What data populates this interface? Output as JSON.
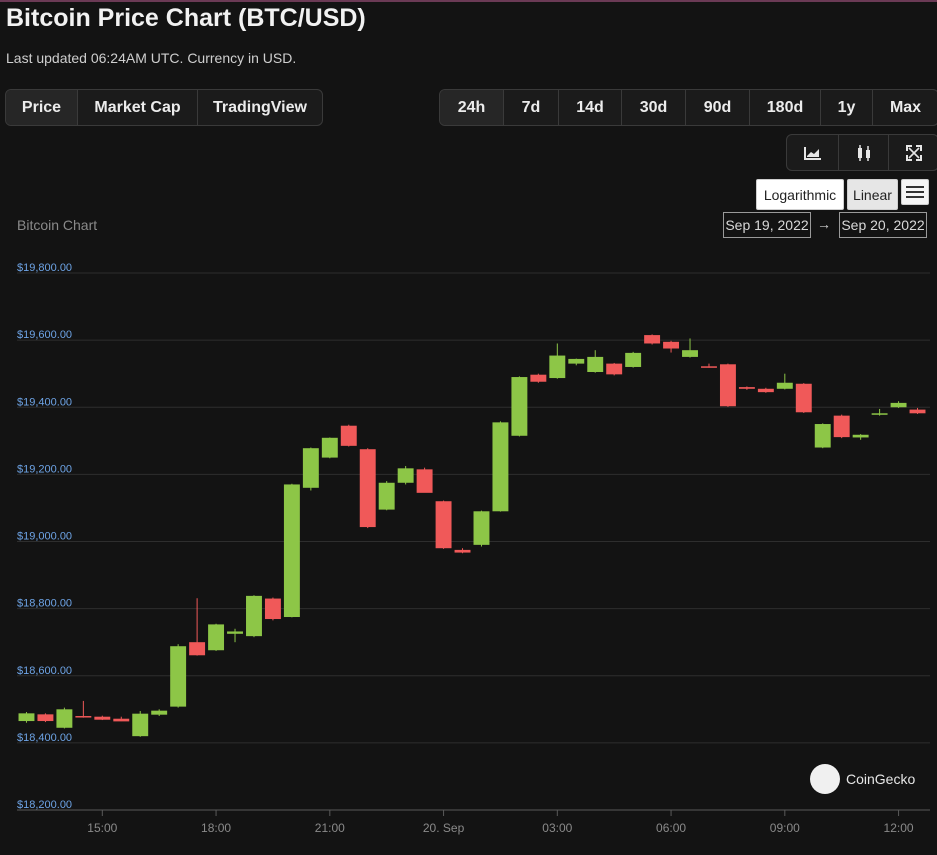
{
  "header": {
    "title": "Bitcoin Price Chart (BTC/USD)",
    "subtitle": "Last updated 06:24AM UTC. Currency in USD."
  },
  "view_tabs": [
    {
      "label": "Price",
      "active": true
    },
    {
      "label": "Market Cap",
      "active": false
    },
    {
      "label": "TradingView",
      "active": false
    }
  ],
  "range_tabs": [
    {
      "label": "24h",
      "active": true
    },
    {
      "label": "7d",
      "active": false
    },
    {
      "label": "14d",
      "active": false
    },
    {
      "label": "30d",
      "active": false
    },
    {
      "label": "90d",
      "active": false
    },
    {
      "label": "180d",
      "active": false
    },
    {
      "label": "1y",
      "active": false
    },
    {
      "label": "Max",
      "active": false
    }
  ],
  "tools": [
    {
      "name": "line-chart-icon"
    },
    {
      "name": "candlestick-icon"
    },
    {
      "name": "fullscreen-icon"
    }
  ],
  "scale": {
    "log_label": "Logarithmic",
    "linear_label": "Linear"
  },
  "date_range": {
    "from": "Sep 19, 2022",
    "arrow": "→",
    "to": "Sep 20, 2022"
  },
  "branding": {
    "text": "CoinGecko"
  },
  "colors": {
    "up": "#8dc647",
    "down": "#f05959",
    "background": "#131313",
    "grid": "#2e2e2e",
    "tick": "#6ea4e6"
  },
  "chart_data": {
    "type": "candlestick",
    "title": "Bitcoin Chart",
    "ylim": [
      18200,
      19800
    ],
    "yticks": [
      "$19,800.00",
      "$19,600.00",
      "$19,400.00",
      "$19,200.00",
      "$19,000.00",
      "$18,800.00",
      "$18,600.00",
      "$18,400.00",
      "$18,200.00"
    ],
    "ytick_values": [
      19800,
      19600,
      19400,
      19200,
      19000,
      18800,
      18600,
      18400,
      18200
    ],
    "xlim": [
      0,
      48
    ],
    "xticks": [
      {
        "label": "15:00",
        "pos": 4.5
      },
      {
        "label": "18:00",
        "pos": 10.5
      },
      {
        "label": "21:00",
        "pos": 16.5
      },
      {
        "label": "20. Sep",
        "pos": 22.5
      },
      {
        "label": "03:00",
        "pos": 28.5
      },
      {
        "label": "06:00",
        "pos": 34.5
      },
      {
        "label": "09:00",
        "pos": 40.5
      },
      {
        "label": "12:00",
        "pos": 46.5
      }
    ],
    "candles": [
      {
        "o": 18465,
        "h": 18492,
        "l": 18460,
        "c": 18488
      },
      {
        "o": 18485,
        "h": 18488,
        "l": 18462,
        "c": 18465
      },
      {
        "o": 18445,
        "h": 18505,
        "l": 18443,
        "c": 18500
      },
      {
        "o": 18480,
        "h": 18525,
        "l": 18475,
        "c": 18476
      },
      {
        "o": 18478,
        "h": 18481,
        "l": 18468,
        "c": 18469
      },
      {
        "o": 18472,
        "h": 18478,
        "l": 18465,
        "c": 18464
      },
      {
        "o": 18420,
        "h": 18495,
        "l": 18418,
        "c": 18487
      },
      {
        "o": 18484,
        "h": 18500,
        "l": 18480,
        "c": 18496
      },
      {
        "o": 18508,
        "h": 18694,
        "l": 18505,
        "c": 18688
      },
      {
        "o": 18700,
        "h": 18831,
        "l": 18660,
        "c": 18661
      },
      {
        "o": 18676,
        "h": 18755,
        "l": 18674,
        "c": 18753
      },
      {
        "o": 18725,
        "h": 18740,
        "l": 18700,
        "c": 18732
      },
      {
        "o": 18718,
        "h": 18840,
        "l": 18715,
        "c": 18838
      },
      {
        "o": 18830,
        "h": 18833,
        "l": 18765,
        "c": 18769
      },
      {
        "o": 18775,
        "h": 19172,
        "l": 18774,
        "c": 19170
      },
      {
        "o": 19160,
        "h": 19280,
        "l": 19152,
        "c": 19278
      },
      {
        "o": 19250,
        "h": 19310,
        "l": 19248,
        "c": 19309
      },
      {
        "o": 19345,
        "h": 19348,
        "l": 19283,
        "c": 19285
      },
      {
        "o": 19275,
        "h": 19278,
        "l": 19040,
        "c": 19043
      },
      {
        "o": 19095,
        "h": 19180,
        "l": 19093,
        "c": 19175
      },
      {
        "o": 19175,
        "h": 19225,
        "l": 19170,
        "c": 19218
      },
      {
        "o": 19215,
        "h": 19220,
        "l": 19147,
        "c": 19145
      },
      {
        "o": 19120,
        "h": 19122,
        "l": 18978,
        "c": 18980
      },
      {
        "o": 18975,
        "h": 18980,
        "l": 18965,
        "c": 18967
      },
      {
        "o": 18990,
        "h": 19092,
        "l": 18985,
        "c": 19090
      },
      {
        "o": 19090,
        "h": 19358,
        "l": 19089,
        "c": 19355
      },
      {
        "o": 19315,
        "h": 19492,
        "l": 19313,
        "c": 19490
      },
      {
        "o": 19497,
        "h": 19500,
        "l": 19473,
        "c": 19476
      },
      {
        "o": 19487,
        "h": 19590,
        "l": 19485,
        "c": 19554
      },
      {
        "o": 19530,
        "h": 19545,
        "l": 19525,
        "c": 19544
      },
      {
        "o": 19505,
        "h": 19570,
        "l": 19503,
        "c": 19550
      },
      {
        "o": 19530,
        "h": 19532,
        "l": 19495,
        "c": 19498
      },
      {
        "o": 19520,
        "h": 19565,
        "l": 19518,
        "c": 19562
      },
      {
        "o": 19615,
        "h": 19617,
        "l": 19587,
        "c": 19590
      },
      {
        "o": 19595,
        "h": 19598,
        "l": 19563,
        "c": 19575
      },
      {
        "o": 19550,
        "h": 19605,
        "l": 19548,
        "c": 19570
      },
      {
        "o": 19522,
        "h": 19530,
        "l": 19518,
        "c": 19520
      },
      {
        "o": 19528,
        "h": 19530,
        "l": 19401,
        "c": 19403
      },
      {
        "o": 19460,
        "h": 19462,
        "l": 19452,
        "c": 19455
      },
      {
        "o": 19455,
        "h": 19458,
        "l": 19443,
        "c": 19445
      },
      {
        "o": 19455,
        "h": 19500,
        "l": 19453,
        "c": 19473
      },
      {
        "o": 19470,
        "h": 19472,
        "l": 19383,
        "c": 19385
      },
      {
        "o": 19280,
        "h": 19352,
        "l": 19278,
        "c": 19350
      },
      {
        "o": 19375,
        "h": 19378,
        "l": 19308,
        "c": 19311
      },
      {
        "o": 19310,
        "h": 19320,
        "l": 19303,
        "c": 19318
      },
      {
        "o": 19380,
        "h": 19395,
        "l": 19375,
        "c": 19382
      },
      {
        "o": 19400,
        "h": 19418,
        "l": 19398,
        "c": 19413
      },
      {
        "o": 19393,
        "h": 19398,
        "l": 19380,
        "c": 19382
      }
    ]
  }
}
